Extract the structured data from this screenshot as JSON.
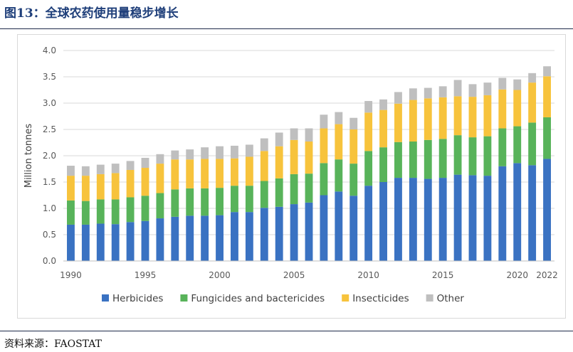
{
  "figure": {
    "title": "图13：全球农药使用量稳步增长",
    "source": "资料来源：FAOSTAT"
  },
  "colors": {
    "title": "#1f3f7a",
    "Herbicides": "#3a72c2",
    "Fungicides and bactericides": "#58b35a",
    "Insecticides": "#f7c33c",
    "Other": "#bfbfbf",
    "grid": "#d9d9d9"
  },
  "chart_data": {
    "type": "bar",
    "stacked": true,
    "title": "",
    "xlabel": "",
    "ylabel": "Million tonnes",
    "ylim": [
      0,
      4
    ],
    "yticks": [
      "0.0",
      "0.5",
      "1.0",
      "1.5",
      "2.0",
      "2.5",
      "3.0",
      "3.5",
      "4.0"
    ],
    "grid": true,
    "legend_position": "bottom",
    "categories": [
      "1990",
      "1991",
      "1992",
      "1993",
      "1994",
      "1995",
      "1996",
      "1997",
      "1998",
      "1999",
      "2000",
      "2001",
      "2002",
      "2003",
      "2004",
      "2005",
      "2006",
      "2007",
      "2008",
      "2009",
      "2010",
      "2011",
      "2012",
      "2013",
      "2014",
      "2015",
      "2016",
      "2017",
      "2018",
      "2019",
      "2020",
      "2021",
      "2022"
    ],
    "x_tick_labels": [
      "1990",
      "1995",
      "2000",
      "2005",
      "2010",
      "2015",
      "2020",
      "2022"
    ],
    "series": [
      {
        "name": "Herbicides",
        "values": [
          0.69,
          0.69,
          0.71,
          0.7,
          0.74,
          0.76,
          0.81,
          0.84,
          0.86,
          0.86,
          0.87,
          0.93,
          0.93,
          1.01,
          1.03,
          1.08,
          1.11,
          1.25,
          1.32,
          1.24,
          1.43,
          1.5,
          1.58,
          1.58,
          1.56,
          1.58,
          1.64,
          1.63,
          1.62,
          1.8,
          1.86,
          1.82,
          1.94
        ]
      },
      {
        "name": "Fungicides and bactericides",
        "values": [
          0.46,
          0.45,
          0.46,
          0.47,
          0.47,
          0.48,
          0.48,
          0.52,
          0.52,
          0.52,
          0.52,
          0.5,
          0.5,
          0.51,
          0.54,
          0.57,
          0.55,
          0.61,
          0.61,
          0.61,
          0.66,
          0.66,
          0.68,
          0.69,
          0.74,
          0.74,
          0.75,
          0.72,
          0.75,
          0.72,
          0.7,
          0.81,
          0.79
        ]
      },
      {
        "name": "Insecticides",
        "values": [
          0.47,
          0.48,
          0.48,
          0.5,
          0.52,
          0.53,
          0.56,
          0.57,
          0.55,
          0.56,
          0.55,
          0.52,
          0.55,
          0.57,
          0.61,
          0.65,
          0.61,
          0.66,
          0.67,
          0.65,
          0.73,
          0.71,
          0.73,
          0.79,
          0.79,
          0.79,
          0.74,
          0.77,
          0.78,
          0.74,
          0.69,
          0.76,
          0.78
        ]
      },
      {
        "name": "Other",
        "values": [
          0.19,
          0.18,
          0.18,
          0.18,
          0.17,
          0.19,
          0.18,
          0.17,
          0.19,
          0.22,
          0.24,
          0.24,
          0.23,
          0.24,
          0.26,
          0.22,
          0.25,
          0.26,
          0.23,
          0.22,
          0.22,
          0.2,
          0.22,
          0.22,
          0.2,
          0.21,
          0.31,
          0.24,
          0.24,
          0.22,
          0.2,
          0.18,
          0.19
        ]
      }
    ]
  }
}
